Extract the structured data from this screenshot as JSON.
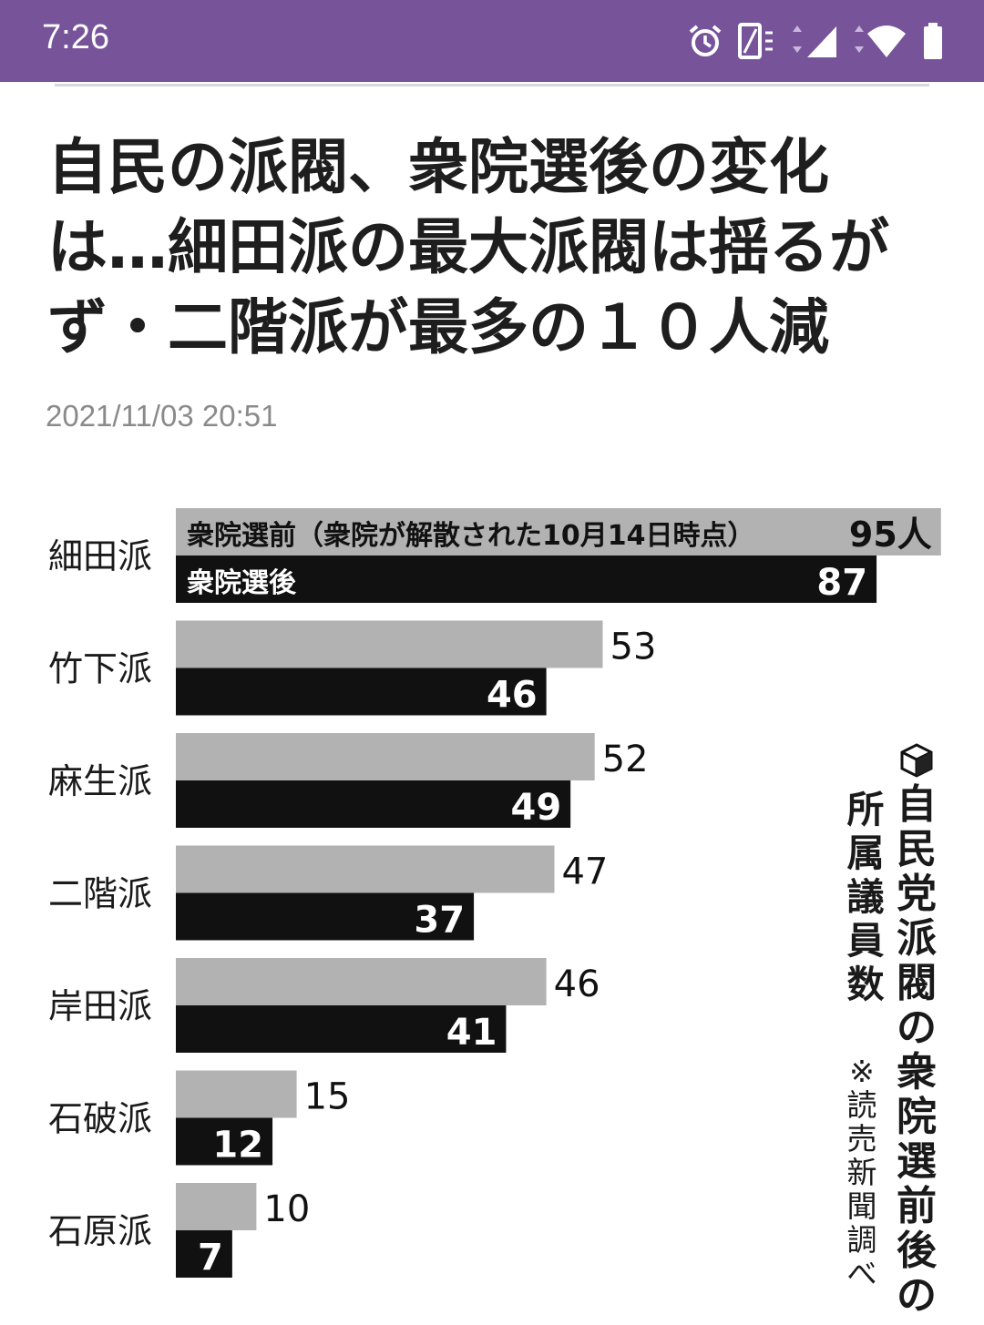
{
  "status_bar": {
    "time": "7:26",
    "icons": [
      "alarm-icon",
      "vibrate-icon",
      "cell-signal-icon",
      "wifi-icon",
      "battery-icon"
    ],
    "background_color": "#77549a"
  },
  "article": {
    "headline": "自民の派閥、衆院選後の変化は…細田派の最大派閥は揺るがず・二階派が最多の１０人減",
    "timestamp": "2021/11/03 20:51"
  },
  "chart_data": {
    "type": "bar",
    "orientation": "horizontal",
    "title": "自民党派閥の衆院選前後の",
    "subtitle": "所属議員数",
    "source": "※読売新聞調べ",
    "categories": [
      "細田派",
      "竹下派",
      "麻生派",
      "二階派",
      "岸田派",
      "石破派",
      "石原派"
    ],
    "series": [
      {
        "name": "衆院選前（衆院が解散された10月14日時点）",
        "values": [
          95,
          53,
          52,
          47,
          46,
          15,
          10
        ],
        "color": "#b2b2b2"
      },
      {
        "name": "衆院選後",
        "values": [
          87,
          46,
          49,
          37,
          41,
          12,
          7
        ],
        "color": "#111111"
      }
    ],
    "first_value_unit": "人",
    "xlim": [
      0,
      95
    ],
    "grid": false,
    "legend": "inside-first-bars"
  }
}
